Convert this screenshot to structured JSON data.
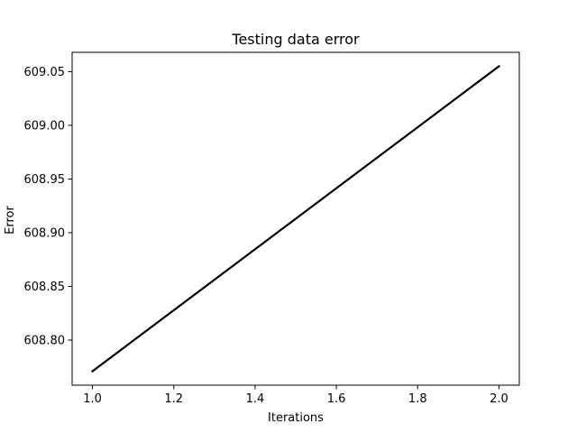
{
  "chart_data": {
    "type": "line",
    "title": "Testing data error",
    "xlabel": "Iterations",
    "ylabel": "Error",
    "xlim": [
      0.95,
      2.05
    ],
    "ylim": [
      608.758,
      609.068
    ],
    "xticks": [
      1.0,
      1.2,
      1.4,
      1.6,
      1.8,
      2.0
    ],
    "xtick_labels": [
      "1.0",
      "1.2",
      "1.4",
      "1.6",
      "1.8",
      "2.0"
    ],
    "yticks": [
      608.8,
      608.85,
      608.9,
      608.95,
      609.0,
      609.05
    ],
    "ytick_labels": [
      "608.80",
      "608.85",
      "608.90",
      "608.95",
      "609.00",
      "609.05"
    ],
    "grid": false,
    "series": [
      {
        "x": [
          1,
          2
        ],
        "y": [
          608.771,
          609.055
        ],
        "color": "#000000"
      }
    ]
  }
}
